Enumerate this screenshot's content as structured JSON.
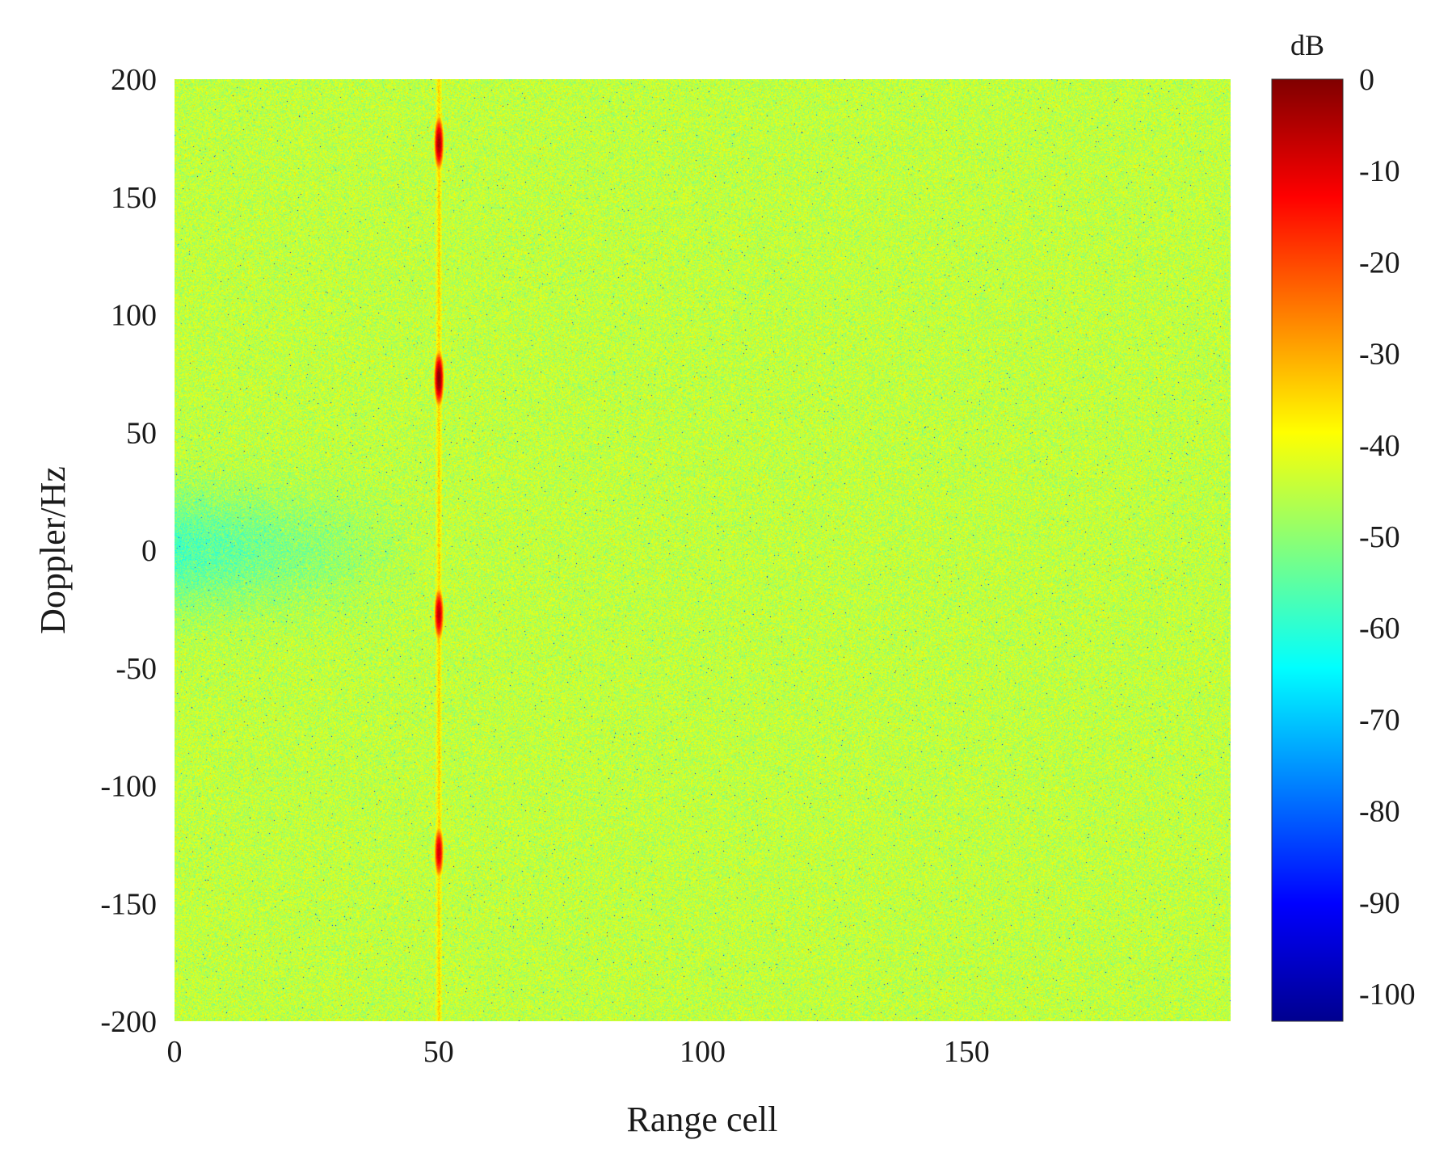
{
  "chart_data": {
    "type": "heatmap",
    "xlabel": "Range cell",
    "ylabel": "Doppler/Hz",
    "xlim": [
      0,
      200
    ],
    "ylim": [
      -200,
      200
    ],
    "x_ticks": [
      "0",
      "50",
      "100",
      "150"
    ],
    "y_ticks": [
      "200",
      "150",
      "100",
      "50",
      "0",
      "-50",
      "-100",
      "-150",
      "-200"
    ],
    "colormap": "jet",
    "colorbar": {
      "unit": "dB",
      "range": [
        -103,
        0
      ],
      "ticks": [
        "0",
        "-10",
        "-20",
        "-30",
        "-40",
        "-50",
        "-60",
        "-70",
        "-80",
        "-90",
        "-100"
      ]
    },
    "background_level_db": -45,
    "low_doppler_band": {
      "doppler_center": 0,
      "range_cells": [
        0,
        30
      ],
      "level_db": -58
    },
    "target_range_cell": 50,
    "target_line_level_db": -33,
    "peaks": [
      {
        "range_cell": 50,
        "doppler": 173,
        "level_db": -3
      },
      {
        "range_cell": 50,
        "doppler": 73,
        "level_db": 0
      },
      {
        "range_cell": 50,
        "doppler": -27,
        "level_db": -6
      },
      {
        "range_cell": 50,
        "doppler": -128,
        "level_db": -8
      }
    ]
  }
}
